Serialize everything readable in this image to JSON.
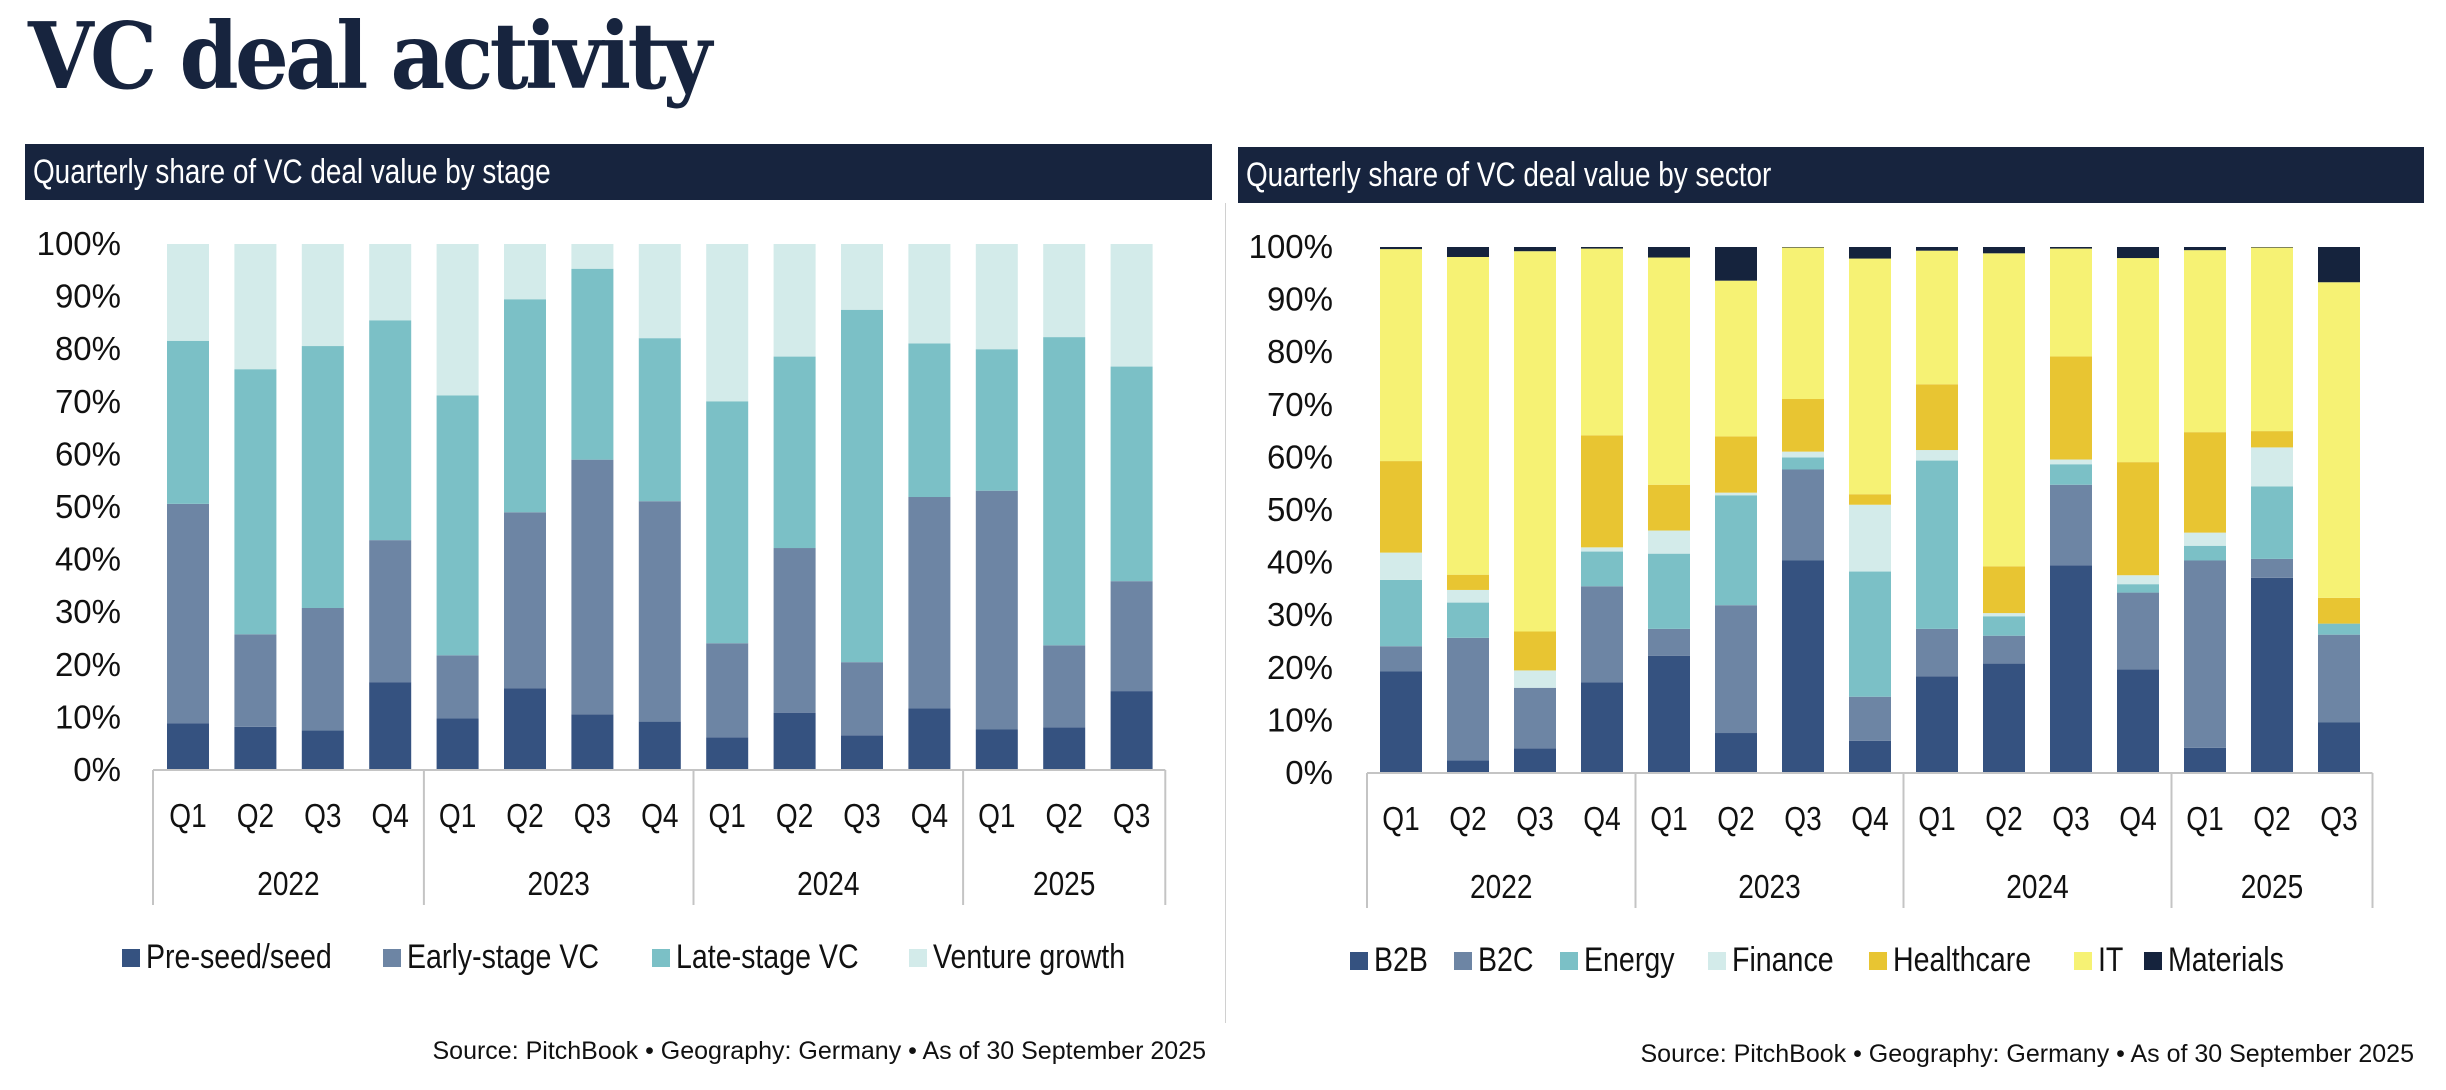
{
  "title": "VC deal activity",
  "panels": {
    "left": {
      "header": "Quarterly share of VC deal value by stage",
      "source": "Source: PitchBook • Geography: Germany • As of 30 September 2025"
    },
    "right": {
      "header": "Quarterly share of VC deal value by sector",
      "source": "Source: PitchBook • Geography: Germany • As of 30 September 2025"
    }
  },
  "chart_data": [
    {
      "type": "bar",
      "stacked": true,
      "title": "Quarterly share of VC deal value by stage",
      "xlabel": "",
      "ylabel": "",
      "ylim": [
        0,
        100
      ],
      "yticks": [
        "0%",
        "10%",
        "20%",
        "30%",
        "40%",
        "50%",
        "60%",
        "70%",
        "80%",
        "90%",
        "100%"
      ],
      "grid": false,
      "legend_position": "bottom",
      "categories": [
        "Q1",
        "Q2",
        "Q3",
        "Q4",
        "Q1",
        "Q2",
        "Q3",
        "Q4",
        "Q1",
        "Q2",
        "Q3",
        "Q4",
        "Q1",
        "Q2",
        "Q3"
      ],
      "groups": [
        {
          "label": "2022",
          "count": 4
        },
        {
          "label": "2023",
          "count": 4
        },
        {
          "label": "2024",
          "count": 4
        },
        {
          "label": "2025",
          "count": 3
        }
      ],
      "series": [
        {
          "name": "Pre-seed/seed",
          "color": "#355280",
          "values": [
            8.9,
            8.2,
            7.5,
            16.7,
            9.8,
            15.5,
            10.6,
            9.2,
            6.2,
            10.9,
            6.6,
            11.7,
            7.7,
            8.1,
            15.0
          ]
        },
        {
          "name": "Early-stage VC",
          "color": "#6d85a4",
          "values": [
            41.7,
            17.6,
            23.3,
            27.0,
            12.0,
            33.5,
            48.4,
            41.9,
            17.9,
            31.3,
            13.9,
            40.2,
            45.4,
            15.6,
            20.9
          ]
        },
        {
          "name": "Late-stage VC",
          "color": "#7bc0c6",
          "values": [
            31.0,
            50.4,
            49.8,
            41.8,
            49.4,
            40.5,
            36.3,
            31.0,
            46.0,
            36.4,
            67.0,
            29.2,
            26.9,
            58.6,
            40.8
          ]
        },
        {
          "name": "Venture growth",
          "color": "#d3ebea",
          "values": [
            18.4,
            23.8,
            19.4,
            14.5,
            28.8,
            10.5,
            4.7,
            17.9,
            29.9,
            21.4,
            12.5,
            18.9,
            20.0,
            17.7,
            23.3
          ]
        }
      ]
    },
    {
      "type": "bar",
      "stacked": true,
      "title": "Quarterly share of VC deal value by sector",
      "xlabel": "",
      "ylabel": "",
      "ylim": [
        0,
        100
      ],
      "yticks": [
        "0%",
        "10%",
        "20%",
        "30%",
        "40%",
        "50%",
        "60%",
        "70%",
        "80%",
        "90%",
        "100%"
      ],
      "grid": false,
      "legend_position": "bottom",
      "categories": [
        "Q1",
        "Q2",
        "Q3",
        "Q4",
        "Q1",
        "Q2",
        "Q3",
        "Q4",
        "Q1",
        "Q2",
        "Q3",
        "Q4",
        "Q1",
        "Q2",
        "Q3"
      ],
      "groups": [
        {
          "label": "2022",
          "count": 4
        },
        {
          "label": "2023",
          "count": 4
        },
        {
          "label": "2024",
          "count": 4
        },
        {
          "label": "2025",
          "count": 3
        }
      ],
      "series": [
        {
          "name": "B2B",
          "color": "#355280",
          "values": [
            19.3,
            2.4,
            4.7,
            17.2,
            22.3,
            7.6,
            40.4,
            6.1,
            18.4,
            20.8,
            39.5,
            19.7,
            4.8,
            37.1,
            9.6
          ]
        },
        {
          "name": "B2C",
          "color": "#6d85a4",
          "values": [
            4.8,
            23.3,
            11.5,
            18.3,
            5.1,
            24.3,
            17.3,
            8.4,
            9.0,
            5.3,
            15.3,
            14.6,
            35.6,
            3.6,
            16.7
          ]
        },
        {
          "name": "Energy",
          "color": "#7bc0c6",
          "values": [
            12.6,
            6.7,
            0.0,
            6.6,
            14.3,
            20.9,
            2.3,
            23.8,
            32.0,
            3.7,
            3.9,
            1.6,
            2.8,
            13.8,
            2.1
          ]
        },
        {
          "name": "Finance",
          "color": "#d3ebea",
          "values": [
            5.2,
            2.4,
            3.3,
            0.8,
            4.4,
            0.5,
            1.1,
            12.7,
            2.0,
            0.6,
            0.9,
            1.7,
            2.5,
            7.4,
            0.0
          ]
        },
        {
          "name": "Healthcare",
          "color": "#e8c532",
          "values": [
            17.4,
            2.9,
            7.4,
            21.3,
            8.7,
            10.7,
            10.0,
            2.0,
            12.5,
            8.9,
            19.6,
            21.5,
            19.1,
            3.1,
            4.9
          ]
        },
        {
          "name": "IT",
          "color": "#f6f274",
          "values": [
            40.3,
            60.4,
            72.3,
            35.5,
            43.2,
            29.6,
            28.8,
            44.8,
            25.4,
            59.5,
            20.5,
            38.8,
            34.6,
            34.9,
            60.0
          ]
        },
        {
          "name": "Materials",
          "color": "#15233d",
          "values": [
            0.4,
            1.9,
            0.8,
            0.3,
            2.0,
            6.4,
            0.1,
            2.2,
            0.7,
            1.2,
            0.3,
            2.1,
            0.6,
            0.1,
            6.7
          ]
        }
      ]
    }
  ]
}
